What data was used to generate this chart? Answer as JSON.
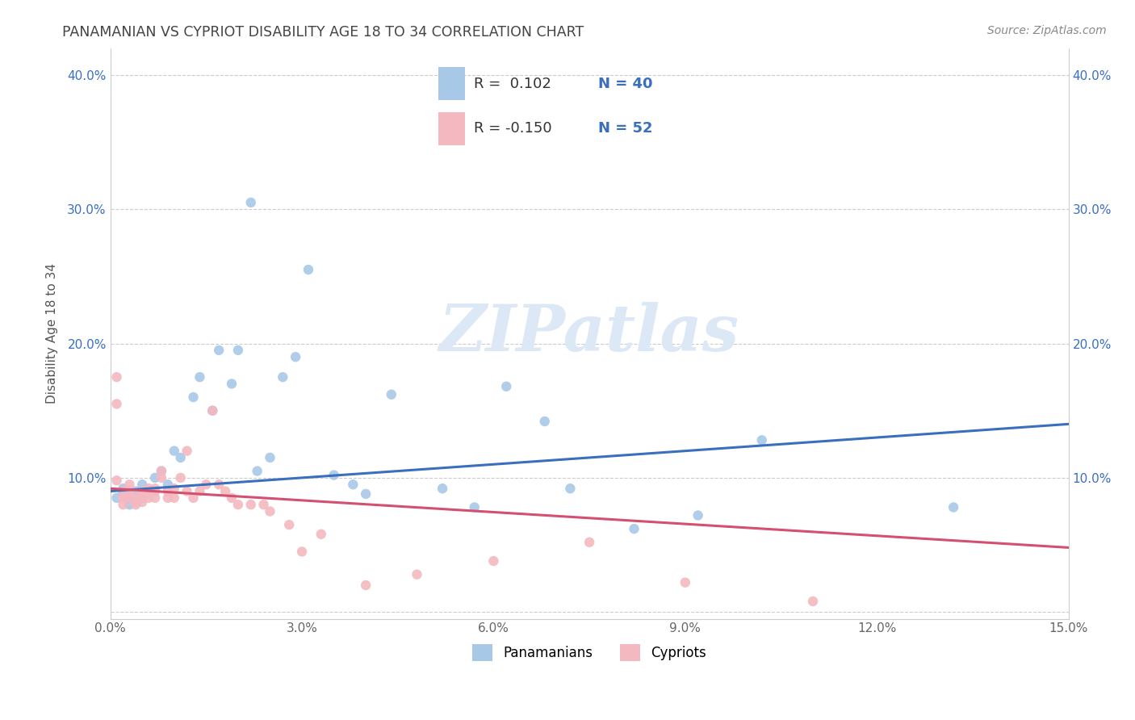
{
  "title": "PANAMANIAN VS CYPRIOT DISABILITY AGE 18 TO 34 CORRELATION CHART",
  "source_text": "Source: ZipAtlas.com",
  "ylabel": "Disability Age 18 to 34",
  "xlim": [
    0.0,
    0.15
  ],
  "ylim": [
    -0.005,
    0.42
  ],
  "xticks": [
    0.0,
    0.03,
    0.06,
    0.09,
    0.12,
    0.15
  ],
  "xtick_labels": [
    "0.0%",
    "3.0%",
    "6.0%",
    "9.0%",
    "12.0%",
    "15.0%"
  ],
  "yticks": [
    0.0,
    0.1,
    0.2,
    0.3,
    0.4
  ],
  "ytick_labels": [
    "",
    "10.0%",
    "20.0%",
    "30.0%",
    "40.0%"
  ],
  "blue_color": "#a8c8e8",
  "pink_color": "#f4b8c0",
  "blue_line_color": "#3a6fbf",
  "pink_line_color": "#d45070",
  "title_color": "#444444",
  "source_color": "#888888",
  "watermark_color": "#dce8f5",
  "legend_label1": "Panamanians",
  "legend_label2": "Cypriots",
  "legend_R1": "R =  0.102",
  "legend_N1": "N = 40",
  "legend_R2": "R = -0.150",
  "legend_N2": "N = 52",
  "blue_line_x0": 0.0,
  "blue_line_x1": 0.15,
  "blue_line_y0": 0.09,
  "blue_line_y1": 0.14,
  "pink_line_x0": 0.0,
  "pink_line_x1": 0.15,
  "pink_line_y0": 0.092,
  "pink_line_y1": 0.048,
  "blue_x": [
    0.001,
    0.002,
    0.002,
    0.003,
    0.003,
    0.004,
    0.004,
    0.005,
    0.005,
    0.006,
    0.007,
    0.008,
    0.009,
    0.01,
    0.011,
    0.013,
    0.014,
    0.016,
    0.017,
    0.019,
    0.02,
    0.022,
    0.023,
    0.025,
    0.027,
    0.029,
    0.031,
    0.035,
    0.038,
    0.04,
    0.044,
    0.052,
    0.057,
    0.062,
    0.068,
    0.072,
    0.082,
    0.092,
    0.102,
    0.132
  ],
  "blue_y": [
    0.085,
    0.088,
    0.092,
    0.08,
    0.085,
    0.082,
    0.09,
    0.095,
    0.085,
    0.09,
    0.1,
    0.105,
    0.095,
    0.12,
    0.115,
    0.16,
    0.175,
    0.15,
    0.195,
    0.17,
    0.195,
    0.305,
    0.105,
    0.115,
    0.175,
    0.19,
    0.255,
    0.102,
    0.095,
    0.088,
    0.162,
    0.092,
    0.078,
    0.168,
    0.142,
    0.092,
    0.062,
    0.072,
    0.128,
    0.078
  ],
  "pink_x": [
    0.001,
    0.001,
    0.001,
    0.002,
    0.002,
    0.002,
    0.002,
    0.003,
    0.003,
    0.003,
    0.003,
    0.004,
    0.004,
    0.004,
    0.005,
    0.005,
    0.005,
    0.006,
    0.006,
    0.006,
    0.007,
    0.007,
    0.007,
    0.008,
    0.008,
    0.009,
    0.009,
    0.01,
    0.01,
    0.011,
    0.012,
    0.012,
    0.013,
    0.014,
    0.015,
    0.016,
    0.017,
    0.018,
    0.019,
    0.02,
    0.022,
    0.024,
    0.025,
    0.028,
    0.03,
    0.033,
    0.04,
    0.048,
    0.06,
    0.075,
    0.09,
    0.11
  ],
  "pink_y": [
    0.155,
    0.175,
    0.098,
    0.085,
    0.09,
    0.08,
    0.085,
    0.085,
    0.09,
    0.09,
    0.095,
    0.08,
    0.085,
    0.082,
    0.085,
    0.09,
    0.082,
    0.085,
    0.092,
    0.088,
    0.085,
    0.09,
    0.092,
    0.1,
    0.105,
    0.085,
    0.09,
    0.085,
    0.092,
    0.1,
    0.12,
    0.09,
    0.085,
    0.09,
    0.095,
    0.15,
    0.095,
    0.09,
    0.085,
    0.08,
    0.08,
    0.08,
    0.075,
    0.065,
    0.045,
    0.058,
    0.02,
    0.028,
    0.038,
    0.052,
    0.022,
    0.008
  ]
}
